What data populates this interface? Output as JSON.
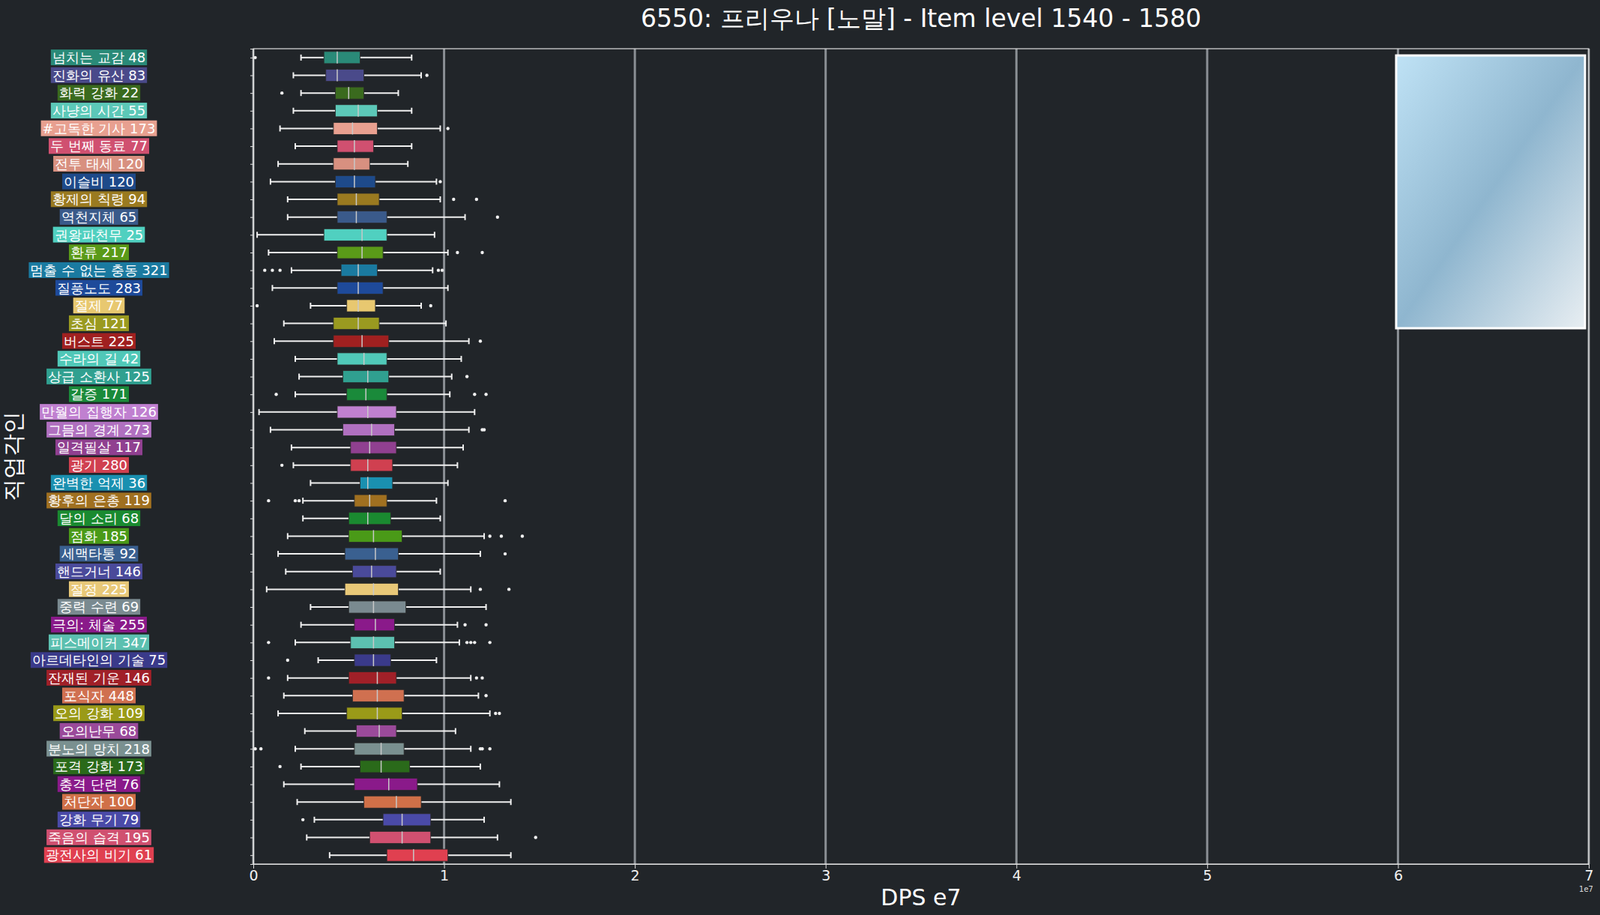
{
  "chart_data": {
    "type": "box",
    "orientation": "horizontal",
    "title": "6550: 프리우나 [노말] - Item level 1540 - 1580",
    "x_label": "DPS e7",
    "y_label": "직업각인",
    "offset_text": "1e7",
    "xlim": [
      0,
      7
    ],
    "xticks": [
      0,
      1,
      2,
      3,
      4,
      5,
      6,
      7
    ],
    "grid": true,
    "categories": [
      "넘치는 교감 48",
      "진화의 유산 83",
      "화력 강화 22",
      "사냥의 시간 55",
      "#고독한 기사 173",
      "두 번째 동료 77",
      "전투 태세 120",
      "이슬비 120",
      "황제의 칙령 94",
      "역천지체 65",
      "권왕파천무 25",
      "환류 217",
      "멈출 수 없는 충동 321",
      "질풍노도 283",
      "절제 77",
      "초심 121",
      "버스트 225",
      "수라의 길 42",
      "상급 소환사 125",
      "갈증 171",
      "만월의 집행자 126",
      "그믐의 경계 273",
      "일격필살 117",
      "광기 280",
      "완벽한 억제 36",
      "황후의 은총 119",
      "달의 소리 68",
      "점화 185",
      "세맥타통 92",
      "핸드거너 146",
      "절정 225",
      "중력 수련 69",
      "극의: 체술 255",
      "피스메이커 347",
      "아르데타인의 기술 75",
      "잔재된 기운 146",
      "포식자 448",
      "오의 강화 109",
      "오의난무 68",
      "분노의 망치 218",
      "포격 강화 173",
      "충격 단련 76",
      "처단자 100",
      "강화 무기 79",
      "죽음의 습격 195",
      "광전사의 비기 61"
    ],
    "colors": [
      "#2a8a78",
      "#4a4a8a",
      "#3a6a1e",
      "#5cc8b8",
      "#e8a090",
      "#d05070",
      "#d89080",
      "#1e4a8a",
      "#9a7a20",
      "#3a5a8a",
      "#50d0c0",
      "#5a9a18",
      "#1a7aa0",
      "#1e4a9a",
      "#e8c870",
      "#9a9a20",
      "#a02020",
      "#50c8b8",
      "#30a090",
      "#1a8a3a",
      "#c080d0",
      "#b070c0",
      "#904090",
      "#d04050",
      "#1a90b0",
      "#a07020",
      "#1a8a30",
      "#4a9a18",
      "#3a6090",
      "#4a4a9a",
      "#e8c878",
      "#7a8a90",
      "#8a1a8a",
      "#5cc0b0",
      "#3a3a8a",
      "#a02028",
      "#d07050",
      "#9a9a18",
      "#9a4a9a",
      "#7a9090",
      "#2a6a1a",
      "#8a1a8a",
      "#d07048",
      "#4a4aa8",
      "#d05070",
      "#e04050"
    ],
    "whisker_low": [
      0.25,
      0.21,
      0.25,
      0.21,
      0.14,
      0.22,
      0.13,
      0.09,
      0.18,
      0.18,
      0.02,
      0.08,
      0.2,
      0.1,
      0.3,
      0.16,
      0.11,
      0.22,
      0.24,
      0.22,
      0.03,
      0.09,
      0.2,
      0.21,
      0.3,
      0.26,
      0.26,
      0.18,
      0.13,
      0.17,
      0.07,
      0.3,
      0.25,
      0.22,
      0.34,
      0.18,
      0.16,
      0.13,
      0.27,
      0.22,
      0.25,
      0.16,
      0.23,
      0.32,
      0.28,
      0.4
    ],
    "q1": [
      0.37,
      0.38,
      0.43,
      0.43,
      0.42,
      0.44,
      0.42,
      0.43,
      0.44,
      0.44,
      0.37,
      0.44,
      0.46,
      0.44,
      0.49,
      0.42,
      0.42,
      0.44,
      0.47,
      0.49,
      0.44,
      0.47,
      0.51,
      0.51,
      0.56,
      0.53,
      0.5,
      0.5,
      0.48,
      0.52,
      0.48,
      0.5,
      0.53,
      0.51,
      0.53,
      0.5,
      0.52,
      0.49,
      0.54,
      0.53,
      0.56,
      0.53,
      0.58,
      0.68,
      0.61,
      0.7
    ],
    "median": [
      0.44,
      0.44,
      0.5,
      0.55,
      0.52,
      0.53,
      0.53,
      0.53,
      0.54,
      0.54,
      0.57,
      0.57,
      0.55,
      0.55,
      0.55,
      0.55,
      0.57,
      0.58,
      0.6,
      0.59,
      0.6,
      0.62,
      0.61,
      0.6,
      0.6,
      0.61,
      0.6,
      0.63,
      0.64,
      0.62,
      0.63,
      0.63,
      0.64,
      0.63,
      0.63,
      0.65,
      0.65,
      0.65,
      0.66,
      0.67,
      0.67,
      0.71,
      0.75,
      0.78,
      0.78,
      0.84
    ],
    "q3": [
      0.56,
      0.58,
      0.58,
      0.65,
      0.65,
      0.63,
      0.61,
      0.64,
      0.66,
      0.7,
      0.7,
      0.68,
      0.65,
      0.68,
      0.64,
      0.66,
      0.71,
      0.7,
      0.71,
      0.7,
      0.75,
      0.74,
      0.75,
      0.73,
      0.73,
      0.7,
      0.72,
      0.78,
      0.76,
      0.75,
      0.76,
      0.8,
      0.74,
      0.74,
      0.72,
      0.75,
      0.79,
      0.78,
      0.75,
      0.79,
      0.82,
      0.86,
      0.88,
      0.93,
      0.93,
      1.02
    ],
    "whisker_high": [
      0.83,
      0.88,
      0.76,
      0.83,
      0.98,
      0.83,
      0.81,
      0.96,
      0.98,
      1.11,
      0.95,
      1.02,
      0.94,
      1.02,
      0.88,
      1.01,
      1.13,
      1.09,
      1.04,
      1.03,
      1.16,
      1.13,
      1.1,
      1.07,
      1.02,
      0.96,
      0.98,
      1.21,
      1.19,
      0.98,
      1.14,
      1.22,
      1.07,
      1.08,
      0.96,
      1.14,
      1.18,
      1.24,
      1.06,
      1.14,
      1.19,
      1.29,
      1.35,
      1.21,
      1.28,
      1.35
    ],
    "outliers": [
      [
        0.01
      ],
      [
        0.91
      ],
      [
        0.15
      ],
      [],
      [
        1.02
      ],
      [],
      [],
      [
        0.98
      ],
      [
        1.05,
        1.17
      ],
      [
        1.28
      ],
      [],
      [
        1.07,
        1.2
      ],
      [
        0.06,
        0.1,
        0.14,
        0.97,
        0.99
      ],
      [],
      [
        0.02,
        0.93
      ],
      [],
      [
        1.19
      ],
      [],
      [
        1.12
      ],
      [
        0.12,
        1.16,
        1.22
      ],
      [],
      [
        1.2,
        1.21
      ],
      [],
      [
        0.15
      ],
      [],
      [
        0.08,
        0.22,
        0.24,
        1.32
      ],
      [],
      [
        1.24,
        1.3,
        1.41
      ],
      [
        1.32
      ],
      [],
      [
        1.19,
        1.34
      ],
      [],
      [
        1.11,
        1.22
      ],
      [
        0.08,
        1.12,
        1.14,
        1.16,
        1.24
      ],
      [
        0.18
      ],
      [
        0.08,
        1.17,
        1.2
      ],
      [
        1.22
      ],
      [
        1.27,
        1.29
      ],
      [],
      [
        0.01,
        0.04,
        1.19,
        1.2,
        1.24
      ],
      [
        0.14
      ],
      [],
      [],
      [
        0.26
      ],
      [
        1.48
      ],
      []
    ]
  }
}
